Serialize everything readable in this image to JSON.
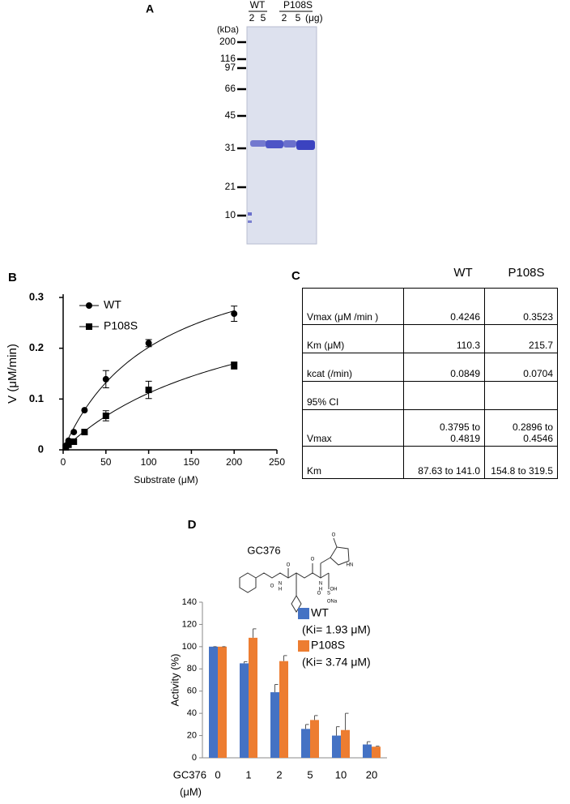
{
  "gel": {
    "panel_label": "A",
    "groups": [
      "WT",
      "P108S"
    ],
    "amounts": [
      2,
      5,
      2,
      5
    ],
    "amount_unit": "(μg)",
    "mw_unit": "(kDa)",
    "markers": [
      200,
      116,
      97,
      66,
      45,
      31,
      21,
      10
    ]
  },
  "table": {
    "panel_label": "C",
    "columns": [
      "WT",
      "P108S"
    ],
    "rows": [
      [
        "Vmax (μM /min )",
        "0.4246",
        "0.3523"
      ],
      [
        "Km (μM)",
        "110.3",
        "215.7"
      ],
      [
        "kcat (/min)",
        "0.0849",
        "0.0704"
      ],
      [
        "95% CI",
        null,
        null
      ],
      [
        "Vmax",
        "0.3795 to 0.4819",
        "0.2896 to 0.4546"
      ],
      [
        "Km",
        "87.63 to 141.0",
        "154.8 to 319.5"
      ]
    ]
  },
  "structure": {
    "panel_label": "D",
    "name": "GC376",
    "atoms": [
      "O",
      "O",
      "N",
      "H",
      "O",
      "N",
      "H",
      "OH",
      "HN",
      "O",
      "S",
      "O",
      "ONa"
    ]
  },
  "chart_data": [
    {
      "type": "scatter",
      "panel_label": "B",
      "x_label": "Substrate (μM)",
      "y_label": "V (μM/min)",
      "x": [
        3.125,
        6.25,
        12.5,
        25,
        50,
        100,
        200
      ],
      "series": [
        {
          "name": "WT",
          "color": "#000000",
          "marker": "circle",
          "values": [
            0.008,
            0.018,
            0.035,
            0.078,
            0.139,
            0.21,
            0.268
          ],
          "errors": [
            null,
            null,
            null,
            null,
            0.017,
            0.007,
            0.015
          ],
          "fit": {
            "vmax": 0.4246,
            "km": 110.3
          }
        },
        {
          "name": "P108S",
          "color": "#000000",
          "marker": "square",
          "values": [
            0.005,
            0.01,
            0.016,
            0.035,
            0.067,
            0.118,
            0.166
          ],
          "errors": [
            null,
            null,
            null,
            null,
            0.01,
            0.017,
            0.007
          ],
          "fit": {
            "vmax": 0.3523,
            "km": 215.7
          }
        }
      ],
      "xlim": [
        0,
        250
      ],
      "ylim": [
        0,
        0.3
      ],
      "xticks": [
        0,
        50,
        100,
        150,
        200,
        250
      ],
      "yticks": [
        0,
        0.1,
        0.2,
        0.3
      ],
      "legend": "upper left"
    },
    {
      "type": "bar",
      "x_label": "GC376",
      "x_unit": "(μM)",
      "y_label": "Activity (%)",
      "categories": [
        "0",
        "1",
        "2",
        "5",
        "10",
        "20"
      ],
      "series": [
        {
          "name": "WT",
          "note": "(Ki= 1.93 μM)",
          "color": "#4472c4",
          "values": [
            100,
            85,
            59,
            26,
            20,
            12
          ],
          "errors": [
            0,
            1.5,
            7,
            4,
            8,
            2.5
          ]
        },
        {
          "name": "P108S",
          "note": "(Ki= 3.74 μM)",
          "color": "#ed7d31",
          "values": [
            100,
            108,
            87,
            34,
            25,
            10
          ],
          "errors": [
            0,
            8,
            5,
            4,
            15,
            0.5
          ]
        }
      ],
      "ylim": [
        0,
        140
      ],
      "yticks": [
        0,
        20,
        40,
        60,
        80,
        100,
        120,
        140
      ],
      "legend": "upper right"
    }
  ]
}
